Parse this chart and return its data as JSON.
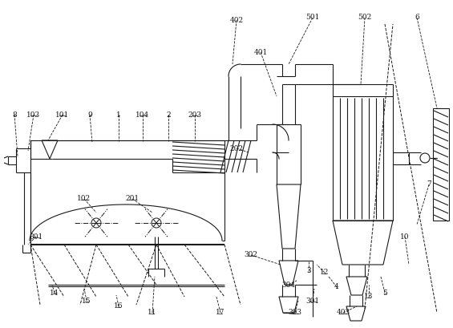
{
  "bg_color": "#ffffff",
  "lc": "#1a1a1a",
  "figsize": [
    5.65,
    4.09
  ],
  "dpi": 100
}
